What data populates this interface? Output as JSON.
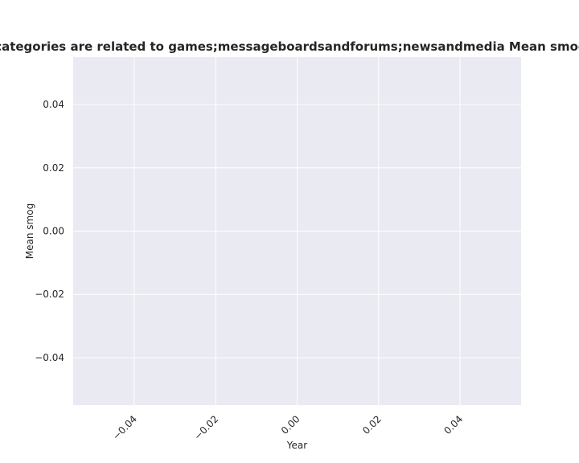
{
  "chart_data": {
    "type": "line",
    "title": "Websites whose categories are related to games;messageboardsandforums;newsandmedia Mean smog in privacy policies",
    "xlabel": "Year",
    "ylabel": "Mean smog",
    "xlim": [
      -0.055,
      0.055
    ],
    "ylim": [
      -0.055,
      0.055
    ],
    "x_ticks": [
      -0.04,
      -0.02,
      0.0,
      0.02,
      0.04
    ],
    "x_tick_labels": [
      "−0.04",
      "−0.02",
      "0.00",
      "0.02",
      "0.04"
    ],
    "y_ticks": [
      0.04,
      0.02,
      0.0,
      -0.02,
      -0.04
    ],
    "y_tick_labels": [
      "0.04",
      "0.02",
      "0.00",
      "−0.02",
      "−0.04"
    ],
    "grid": true,
    "series": [],
    "colors": {
      "plot_background": "#eaeaf2",
      "grid": "#ffffff",
      "text": "#262626"
    }
  }
}
